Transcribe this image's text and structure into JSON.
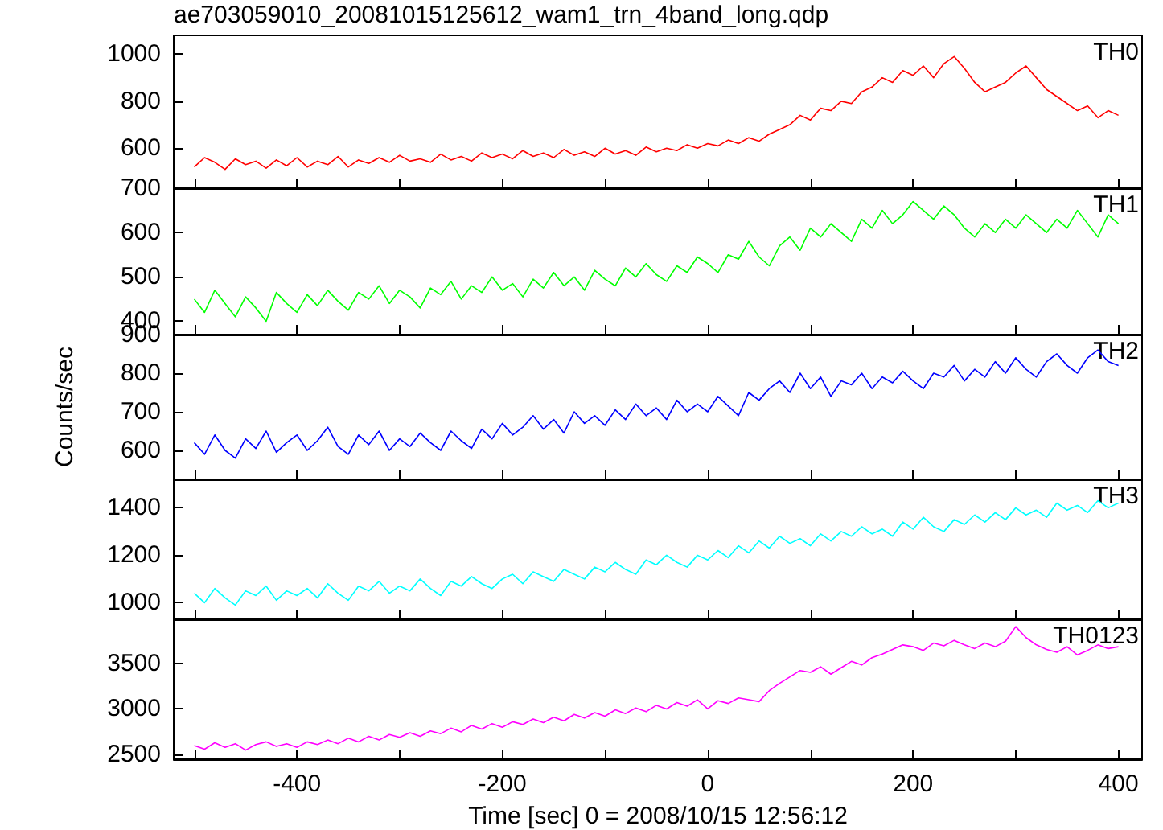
{
  "chart_data": [
    {
      "type": "line",
      "title": "ae703059010_20081015125612_wam1_trn_4band_long.qdp",
      "annotations": [
        "TH0"
      ],
      "tick_labels": "y",
      "x": [
        -500,
        -490,
        -480,
        -470,
        -460,
        -450,
        -440,
        -430,
        -420,
        -410,
        -400,
        -390,
        -380,
        -370,
        -360,
        -350,
        -340,
        -330,
        -320,
        -310,
        -300,
        -290,
        -280,
        -270,
        -260,
        -250,
        -240,
        -230,
        -220,
        -210,
        -200,
        -190,
        -180,
        -170,
        -160,
        -150,
        -140,
        -130,
        -120,
        -110,
        -100,
        -90,
        -80,
        -70,
        -60,
        -50,
        -40,
        -30,
        -20,
        -10,
        0,
        10,
        20,
        30,
        40,
        50,
        60,
        70,
        80,
        90,
        100,
        110,
        120,
        130,
        140,
        150,
        160,
        170,
        180,
        190,
        200,
        210,
        220,
        230,
        240,
        250,
        260,
        270,
        280,
        290,
        300,
        310,
        320,
        330,
        340,
        350,
        360,
        370,
        380,
        390,
        400
      ],
      "series": [
        {
          "color": "#ff0000",
          "values": [
            520,
            560,
            540,
            510,
            555,
            530,
            545,
            515,
            550,
            525,
            560,
            520,
            545,
            530,
            565,
            520,
            550,
            535,
            560,
            540,
            570,
            545,
            555,
            540,
            575,
            550,
            565,
            545,
            580,
            560,
            575,
            555,
            590,
            565,
            580,
            560,
            595,
            570,
            585,
            565,
            600,
            575,
            590,
            570,
            605,
            585,
            600,
            590,
            615,
            600,
            620,
            610,
            635,
            620,
            645,
            630,
            660,
            680,
            700,
            740,
            720,
            770,
            760,
            800,
            790,
            840,
            860,
            900,
            880,
            930,
            910,
            950,
            900,
            960,
            990,
            940,
            880,
            840,
            860,
            880,
            920,
            950,
            900,
            850,
            820,
            790,
            760,
            780,
            730,
            760,
            740
          ]
        }
      ],
      "xlim": [
        -520,
        423
      ],
      "ylim": [
        430,
        1080
      ],
      "xticks": [
        {
          "value": -500,
          "label": null
        },
        -400,
        {
          "value": -300,
          "label": null
        },
        -200,
        {
          "value": -100,
          "label": null
        },
        0,
        {
          "value": 100,
          "label": null
        },
        200,
        {
          "value": 300,
          "label": null
        },
        400
      ],
      "yticks": [
        600,
        800,
        1000
      ]
    },
    {
      "type": "line",
      "annotations": [
        "TH1"
      ],
      "tick_labels": "y",
      "x": [
        -500,
        -490,
        -480,
        -470,
        -460,
        -450,
        -440,
        -430,
        -420,
        -410,
        -400,
        -390,
        -380,
        -370,
        -360,
        -350,
        -340,
        -330,
        -320,
        -310,
        -300,
        -290,
        -280,
        -270,
        -260,
        -250,
        -240,
        -230,
        -220,
        -210,
        -200,
        -190,
        -180,
        -170,
        -160,
        -150,
        -140,
        -130,
        -120,
        -110,
        -100,
        -90,
        -80,
        -70,
        -60,
        -50,
        -40,
        -30,
        -20,
        -10,
        0,
        10,
        20,
        30,
        40,
        50,
        60,
        70,
        80,
        90,
        100,
        110,
        120,
        130,
        140,
        150,
        160,
        170,
        180,
        190,
        200,
        210,
        220,
        230,
        240,
        250,
        260,
        270,
        280,
        290,
        300,
        310,
        320,
        330,
        340,
        350,
        360,
        370,
        380,
        390,
        400
      ],
      "series": [
        {
          "color": "#00ff00",
          "values": [
            450,
            420,
            470,
            440,
            410,
            455,
            430,
            400,
            465,
            440,
            420,
            460,
            435,
            470,
            445,
            425,
            465,
            450,
            480,
            440,
            470,
            455,
            430,
            475,
            460,
            490,
            450,
            480,
            465,
            500,
            470,
            485,
            455,
            495,
            475,
            510,
            480,
            500,
            470,
            515,
            495,
            480,
            520,
            500,
            530,
            505,
            490,
            525,
            510,
            545,
            530,
            510,
            550,
            540,
            580,
            545,
            525,
            570,
            590,
            560,
            610,
            590,
            620,
            600,
            580,
            630,
            610,
            650,
            620,
            640,
            670,
            650,
            630,
            660,
            640,
            610,
            590,
            620,
            600,
            630,
            610,
            640,
            620,
            600,
            630,
            610,
            650,
            620,
            590,
            640,
            620
          ]
        }
      ],
      "xlim": [
        -520,
        423
      ],
      "ylim": [
        370,
        700
      ],
      "xticks": [
        {
          "value": -500,
          "label": null
        },
        -400,
        {
          "value": -300,
          "label": null
        },
        -200,
        {
          "value": -100,
          "label": null
        },
        0,
        {
          "value": 100,
          "label": null
        },
        200,
        {
          "value": 300,
          "label": null
        },
        400
      ],
      "yticks": [
        400,
        500,
        600,
        700
      ]
    },
    {
      "type": "line",
      "ylabel": "Counts/sec",
      "annotations": [
        "TH2"
      ],
      "tick_labels": "y",
      "x": [
        -500,
        -490,
        -480,
        -470,
        -460,
        -450,
        -440,
        -430,
        -420,
        -410,
        -400,
        -390,
        -380,
        -370,
        -360,
        -350,
        -340,
        -330,
        -320,
        -310,
        -300,
        -290,
        -280,
        -270,
        -260,
        -250,
        -240,
        -230,
        -220,
        -210,
        -200,
        -190,
        -180,
        -170,
        -160,
        -150,
        -140,
        -130,
        -120,
        -110,
        -100,
        -90,
        -80,
        -70,
        -60,
        -50,
        -40,
        -30,
        -20,
        -10,
        0,
        10,
        20,
        30,
        40,
        50,
        60,
        70,
        80,
        90,
        100,
        110,
        120,
        130,
        140,
        150,
        160,
        170,
        180,
        190,
        200,
        210,
        220,
        230,
        240,
        250,
        260,
        270,
        280,
        290,
        300,
        310,
        320,
        330,
        340,
        350,
        360,
        370,
        380,
        390,
        400
      ],
      "series": [
        {
          "color": "#0000ff",
          "values": [
            620,
            590,
            640,
            600,
            580,
            630,
            605,
            650,
            595,
            620,
            640,
            600,
            625,
            660,
            610,
            590,
            640,
            615,
            650,
            600,
            630,
            610,
            645,
            620,
            600,
            650,
            625,
            605,
            655,
            630,
            670,
            640,
            660,
            690,
            655,
            680,
            645,
            700,
            670,
            690,
            665,
            705,
            680,
            720,
            690,
            710,
            680,
            730,
            700,
            720,
            700,
            740,
            715,
            690,
            750,
            730,
            760,
            780,
            750,
            800,
            760,
            790,
            740,
            780,
            770,
            800,
            760,
            790,
            775,
            805,
            780,
            760,
            800,
            790,
            820,
            780,
            810,
            790,
            830,
            800,
            840,
            810,
            790,
            830,
            850,
            820,
            800,
            840,
            860,
            830,
            820
          ]
        }
      ],
      "xlim": [
        -520,
        423
      ],
      "ylim": [
        525,
        900
      ],
      "xticks": [
        {
          "value": -500,
          "label": null
        },
        -400,
        {
          "value": -300,
          "label": null
        },
        -200,
        {
          "value": -100,
          "label": null
        },
        0,
        {
          "value": 100,
          "label": null
        },
        200,
        {
          "value": 300,
          "label": null
        },
        400
      ],
      "yticks": [
        600,
        700,
        800,
        900
      ]
    },
    {
      "type": "line",
      "annotations": [
        "TH3"
      ],
      "tick_labels": "y",
      "x": [
        -500,
        -490,
        -480,
        -470,
        -460,
        -450,
        -440,
        -430,
        -420,
        -410,
        -400,
        -390,
        -380,
        -370,
        -360,
        -350,
        -340,
        -330,
        -320,
        -310,
        -300,
        -290,
        -280,
        -270,
        -260,
        -250,
        -240,
        -230,
        -220,
        -210,
        -200,
        -190,
        -180,
        -170,
        -160,
        -150,
        -140,
        -130,
        -120,
        -110,
        -100,
        -90,
        -80,
        -70,
        -60,
        -50,
        -40,
        -30,
        -20,
        -10,
        0,
        10,
        20,
        30,
        40,
        50,
        60,
        70,
        80,
        90,
        100,
        110,
        120,
        130,
        140,
        150,
        160,
        170,
        180,
        190,
        200,
        210,
        220,
        230,
        240,
        250,
        260,
        270,
        280,
        290,
        300,
        310,
        320,
        330,
        340,
        350,
        360,
        370,
        380,
        390,
        400
      ],
      "series": [
        {
          "color": "#00ffff",
          "values": [
            1040,
            1000,
            1060,
            1020,
            990,
            1050,
            1030,
            1070,
            1010,
            1050,
            1030,
            1060,
            1020,
            1080,
            1040,
            1010,
            1070,
            1050,
            1090,
            1040,
            1070,
            1050,
            1100,
            1060,
            1030,
            1090,
            1070,
            1110,
            1080,
            1060,
            1100,
            1120,
            1080,
            1130,
            1110,
            1090,
            1140,
            1120,
            1100,
            1150,
            1130,
            1170,
            1140,
            1120,
            1180,
            1160,
            1200,
            1170,
            1150,
            1200,
            1180,
            1220,
            1190,
            1240,
            1210,
            1260,
            1230,
            1280,
            1250,
            1270,
            1240,
            1290,
            1260,
            1300,
            1280,
            1320,
            1290,
            1310,
            1280,
            1340,
            1310,
            1360,
            1320,
            1300,
            1350,
            1330,
            1370,
            1340,
            1380,
            1350,
            1400,
            1370,
            1390,
            1360,
            1420,
            1390,
            1410,
            1380,
            1430,
            1400,
            1420
          ]
        }
      ],
      "xlim": [
        -520,
        423
      ],
      "ylim": [
        930,
        1520
      ],
      "xticks": [
        {
          "value": -500,
          "label": null
        },
        -400,
        {
          "value": -300,
          "label": null
        },
        -200,
        {
          "value": -100,
          "label": null
        },
        0,
        {
          "value": 100,
          "label": null
        },
        200,
        {
          "value": 300,
          "label": null
        },
        400
      ],
      "yticks": [
        1000,
        1200,
        1400
      ]
    },
    {
      "type": "line",
      "xlabel": "Time [sec] 0 = 2008/10/15 12:56:12",
      "annotations": [
        "TH0123"
      ],
      "x": [
        -500,
        -490,
        -480,
        -470,
        -460,
        -450,
        -440,
        -430,
        -420,
        -410,
        -400,
        -390,
        -380,
        -370,
        -360,
        -350,
        -340,
        -330,
        -320,
        -310,
        -300,
        -290,
        -280,
        -270,
        -260,
        -250,
        -240,
        -230,
        -220,
        -210,
        -200,
        -190,
        -180,
        -170,
        -160,
        -150,
        -140,
        -130,
        -120,
        -110,
        -100,
        -90,
        -80,
        -70,
        -60,
        -50,
        -40,
        -30,
        -20,
        -10,
        0,
        10,
        20,
        30,
        40,
        50,
        60,
        70,
        80,
        90,
        100,
        110,
        120,
        130,
        140,
        150,
        160,
        170,
        180,
        190,
        200,
        210,
        220,
        230,
        240,
        250,
        260,
        270,
        280,
        290,
        300,
        310,
        320,
        330,
        340,
        350,
        360,
        370,
        380,
        390,
        400
      ],
      "series": [
        {
          "color": "#ff00ff",
          "values": [
            2600,
            2560,
            2630,
            2580,
            2620,
            2550,
            2610,
            2640,
            2590,
            2620,
            2580,
            2640,
            2610,
            2660,
            2620,
            2680,
            2640,
            2700,
            2660,
            2720,
            2690,
            2740,
            2700,
            2760,
            2730,
            2790,
            2750,
            2820,
            2780,
            2840,
            2800,
            2860,
            2830,
            2890,
            2850,
            2910,
            2870,
            2940,
            2900,
            2960,
            2920,
            2990,
            2950,
            3010,
            2970,
            3040,
            3000,
            3070,
            3030,
            3100,
            3000,
            3090,
            3060,
            3120,
            3100,
            3080,
            3200,
            3280,
            3350,
            3420,
            3400,
            3460,
            3380,
            3450,
            3520,
            3480,
            3560,
            3600,
            3650,
            3700,
            3680,
            3640,
            3720,
            3690,
            3750,
            3700,
            3660,
            3720,
            3680,
            3740,
            3900,
            3780,
            3700,
            3650,
            3620,
            3680,
            3590,
            3640,
            3700,
            3660,
            3680
          ]
        }
      ],
      "xlim": [
        -520,
        423
      ],
      "ylim": [
        2450,
        3980
      ],
      "xticks": [
        {
          "value": -500,
          "label": null
        },
        -400,
        {
          "value": -300,
          "label": null
        },
        -200,
        {
          "value": -100,
          "label": null
        },
        0,
        {
          "value": 100,
          "label": null
        },
        200,
        {
          "value": 300,
          "label": null
        },
        400
      ],
      "yticks": [
        2500,
        3000,
        3500
      ]
    }
  ]
}
